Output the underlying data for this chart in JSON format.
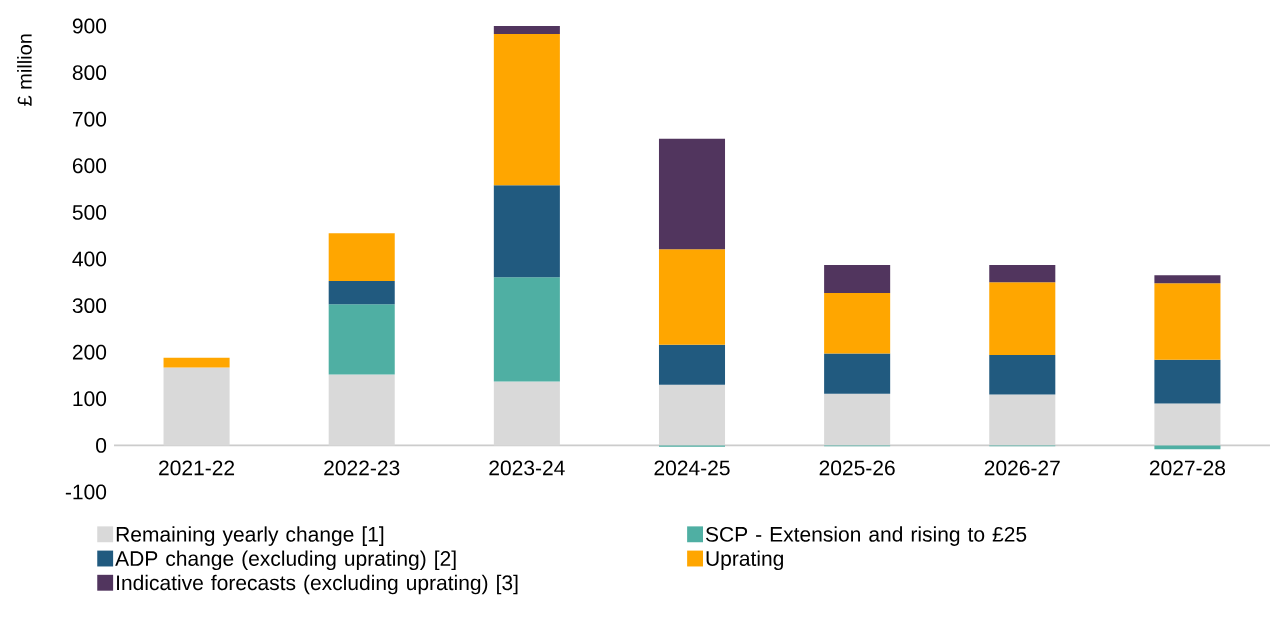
{
  "chart_data": {
    "type": "bar",
    "stacked": true,
    "ylabel": "£ million",
    "categories": [
      "2021-22",
      "2022-23",
      "2023-24",
      "2024-25",
      "2025-26",
      "2026-27",
      "2027-28"
    ],
    "series": [
      {
        "name": "Remaining yearly change [1]",
        "color": "#d9d9d9",
        "values": [
          167,
          152,
          137,
          130,
          111,
          109,
          90
        ]
      },
      {
        "name": "SCP - Extension and rising to £25",
        "color": "#4fafa3",
        "values": [
          null,
          151,
          224,
          -3,
          -2,
          -2,
          -8
        ]
      },
      {
        "name": "ADP change (excluding uprating) [2]",
        "color": "#215a7f",
        "values": [
          null,
          50,
          197,
          86,
          86,
          85,
          94
        ]
      },
      {
        "name": "Uprating",
        "color": "#ffa600",
        "values": [
          21,
          102,
          325,
          205,
          130,
          156,
          164
        ]
      },
      {
        "name": "Indicative forecasts (excluding uprating) [3]",
        "color": "#51355e",
        "values": [
          null,
          null,
          17,
          237,
          60,
          37,
          17
        ]
      }
    ],
    "ylim": [
      -100,
      900
    ],
    "yticks": [
      -100,
      0,
      100,
      200,
      300,
      400,
      500,
      600,
      700,
      800,
      900
    ],
    "grid": false,
    "legend": "bottom"
  }
}
